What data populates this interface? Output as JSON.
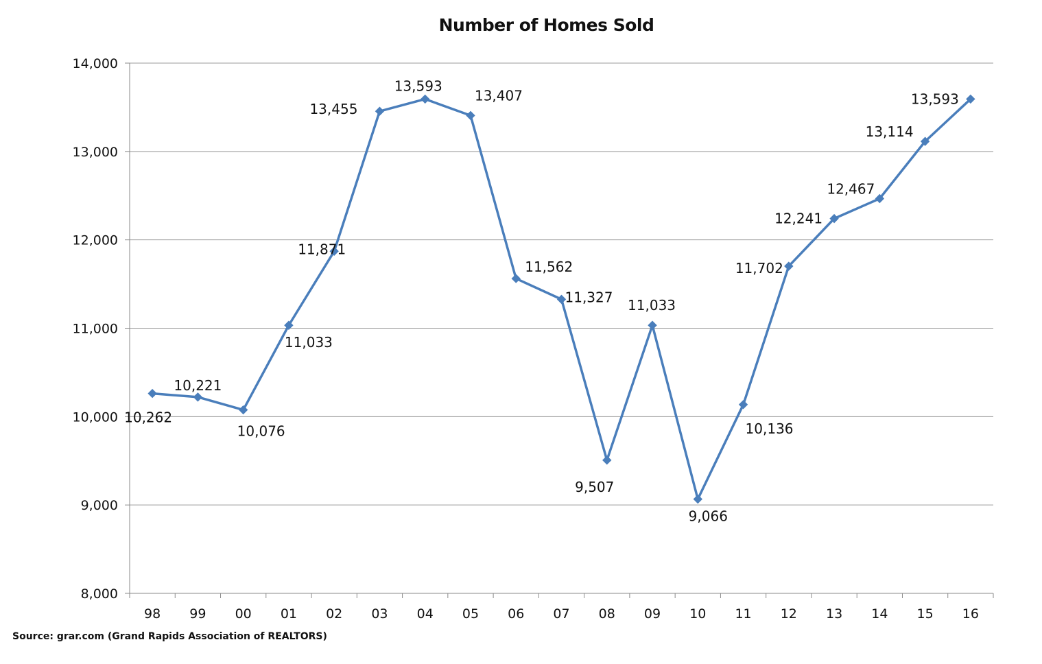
{
  "chart_data": {
    "type": "line",
    "title": "Number of Homes Sold",
    "xlabel": "",
    "ylabel": "",
    "categories": [
      "98",
      "99",
      "00",
      "01",
      "02",
      "03",
      "04",
      "05",
      "06",
      "07",
      "08",
      "09",
      "10",
      "11",
      "12",
      "13",
      "14",
      "15",
      "16"
    ],
    "series": [
      {
        "values": [
          10262,
          10221,
          10076,
          11033,
          11871,
          13455,
          13593,
          13407,
          11562,
          11327,
          9507,
          11033,
          9066,
          10136,
          11702,
          12241,
          12467,
          13114,
          13593
        ],
        "data_labels": [
          "10,262",
          "10,221",
          "10,076",
          "11,033",
          "11,871",
          "13,455",
          "13,593",
          "13,407",
          "11,562",
          "11,327",
          "9,507",
          "11,033",
          "9,066",
          "10,136",
          "11,702",
          "12,241",
          "12,467",
          "13,114",
          "13,593"
        ],
        "color": "#4a7ebb",
        "marker": "diamond"
      }
    ],
    "ylim": [
      8000,
      14000
    ],
    "yticks": [
      8000,
      9000,
      10000,
      11000,
      12000,
      13000,
      14000
    ],
    "ytick_labels": [
      "8,000",
      "9,000",
      "10,000",
      "11,000",
      "12,000",
      "13,000",
      "14,000"
    ],
    "grid": "horizontal",
    "legend": "none",
    "source": "Source:  grar.com (Grand Rapids Association  of REALTORS)"
  }
}
